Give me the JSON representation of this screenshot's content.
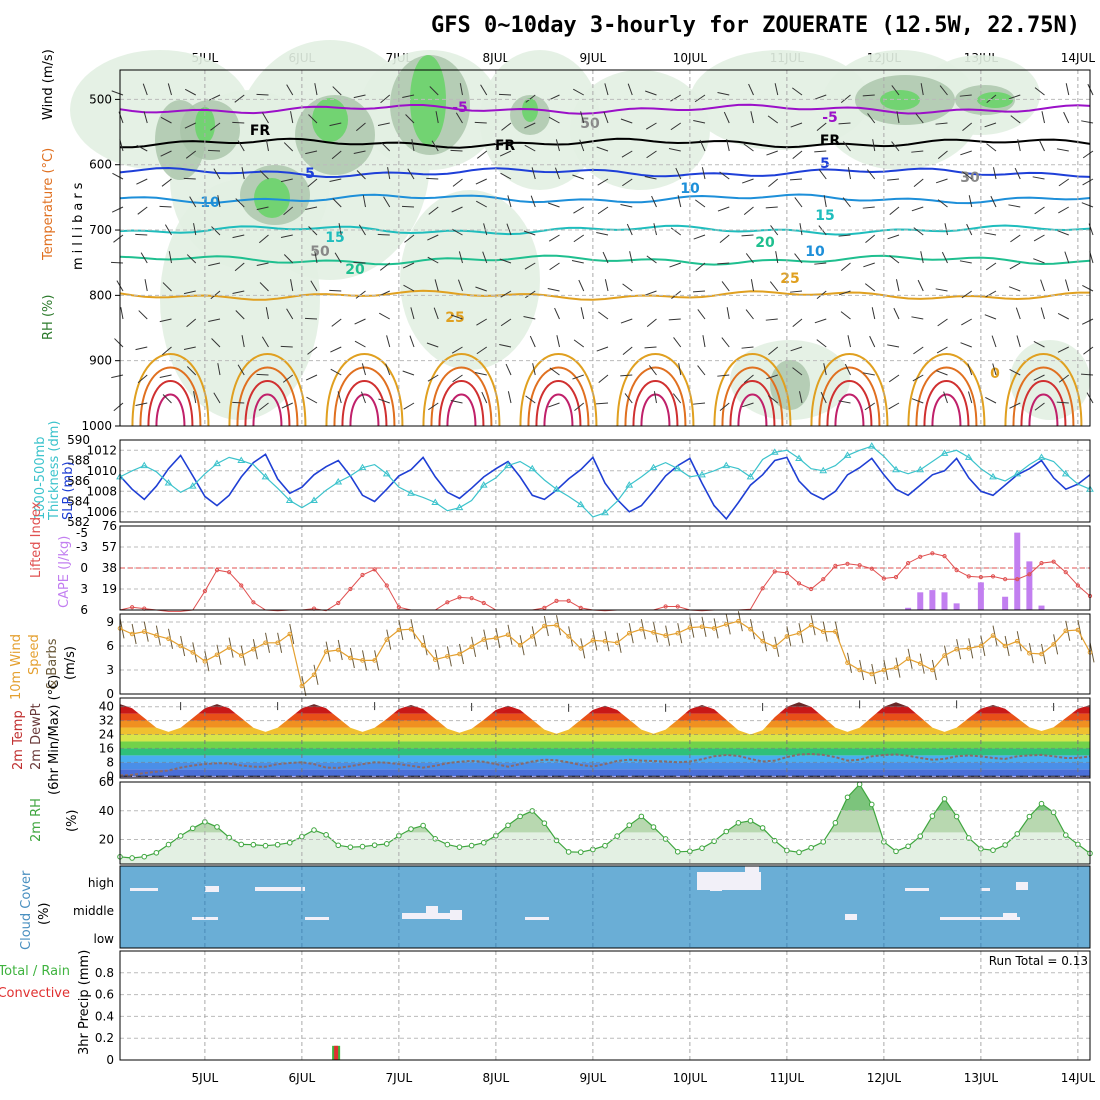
{
  "title": "GFS 0~10day 3-hourly for ZOUERATE (12.5W, 22.75N)",
  "dates": [
    "5JUL",
    "6JUL",
    "7JUL",
    "8JUL",
    "9JUL",
    "10JUL",
    "11JUL",
    "12JUL",
    "13JUL",
    "14JUL"
  ],
  "run_total": "Run Total = 0.13",
  "colors": {
    "rh_dark": "#6fd36f",
    "rh_mid": "#a9c4a9",
    "rh_light": "#e2efe2",
    "slp": "#1f3fd4",
    "thickness": "#3cc3cc",
    "lifted": "#e05050",
    "cape": "#c27ff0",
    "wind": "#e4a030",
    "rh2m": "#3fa63f",
    "cloud_bg": "#6aaed6",
    "cloud_fill": "#f2f0f8",
    "precip_total": "#3fb33f",
    "precip_conv": "#e03030"
  },
  "chart_data": [
    {
      "id": "upper",
      "type": "contour",
      "ylabel_parts": [
        "RH (%)",
        "Temperature (°C)",
        "Wind (m/s)"
      ],
      "yunit": "millibars",
      "yticks": [
        500,
        600,
        700,
        800,
        900,
        1000
      ],
      "ylim": [
        1000,
        455
      ],
      "contour_labels": [
        "-5",
        "-5",
        "FR",
        "FR",
        "FR",
        "5",
        "5",
        "10",
        "10",
        "15",
        "15",
        "20",
        "20",
        "25",
        "25",
        "50",
        "50",
        "30",
        "10",
        "0"
      ],
      "isotherms": [
        {
          "label": "-5",
          "level": 515,
          "color": "#9b10c8"
        },
        {
          "label": "FR",
          "level": 567,
          "color": "#000000"
        },
        {
          "label": "5",
          "level": 612,
          "color": "#1e3fd8"
        },
        {
          "label": "10",
          "level": 652,
          "color": "#1d8fd9"
        },
        {
          "label": "15",
          "level": 700,
          "color": "#1fbdbd"
        },
        {
          "label": "20",
          "level": 746,
          "color": "#1fbf8f"
        },
        {
          "label": "25",
          "level": 800,
          "color": "#e0a020"
        }
      ]
    },
    {
      "id": "thickness-slp",
      "type": "line",
      "ylabel_parts": [
        "1000-500mb",
        "Thickness (dm)",
        "SLP (mb)"
      ],
      "thickness_ticks": [
        582,
        584,
        586,
        588,
        590
      ],
      "slp_ticks": [
        1006,
        1008,
        1010,
        1012
      ],
      "thickness_lim": [
        582,
        590
      ],
      "slp_lim": [
        1005,
        1013
      ],
      "series": [
        {
          "name": "SLP (mb)",
          "axis": "slp",
          "values": [
            1009.5,
            1008.2,
            1007.2,
            1008.5,
            1010.2,
            1011.5,
            1009.5,
            1007.5,
            1006.6,
            1007.6,
            1009.4,
            1010.8,
            1011.6,
            1009.2,
            1007.8,
            1008.4,
            1009.6,
            1010.4,
            1011.0,
            1009.5,
            1007.6,
            1007.0,
            1008.2,
            1009.5,
            1010.1,
            1011.3,
            1009.4,
            1007.9,
            1007.3,
            1008.3,
            1009.4,
            1010.2,
            1010.9,
            1009.4,
            1007.6,
            1007.2,
            1008.1,
            1009.2,
            1010.1,
            1011.3,
            1008.8,
            1007.2,
            1006.0,
            1006.6,
            1008.0,
            1009.5,
            1010.5,
            1011.2,
            1008.8,
            1006.6,
            1005.3,
            1006.9,
            1008.6,
            1009.6,
            1011.0,
            1011.3,
            1009.0,
            1007.8,
            1007.2,
            1008.0,
            1009.6,
            1010.3,
            1011.2,
            1009.6,
            1008.2,
            1007.6,
            1008.6,
            1009.6,
            1010.0,
            1011.2,
            1009.3,
            1008.0,
            1007.6,
            1008.6,
            1009.6,
            1010.2,
            1011.0,
            1009.3,
            1008.2,
            1008.7,
            1009.6
          ]
        },
        {
          "name": "1000-500mb Thickness (dm)",
          "axis": "thickness",
          "values": [
            586.4,
            587.0,
            587.5,
            586.9,
            585.8,
            584.9,
            585.5,
            586.7,
            587.7,
            588.3,
            588.0,
            587.6,
            586.4,
            585.3,
            584.1,
            583.4,
            584.1,
            585.1,
            585.9,
            586.5,
            587.3,
            587.6,
            586.7,
            585.4,
            584.8,
            584.4,
            583.9,
            583.1,
            583.4,
            584.1,
            585.6,
            586.3,
            587.5,
            587.9,
            587.2,
            586.1,
            585.2,
            584.5,
            583.7,
            582.5,
            582.9,
            584.0,
            585.6,
            586.4,
            587.3,
            587.8,
            587.2,
            586.4,
            586.6,
            587.0,
            587.5,
            587.2,
            586.4,
            588.1,
            588.8,
            589.0,
            588.2,
            587.2,
            587.0,
            587.5,
            588.5,
            589.0,
            589.4,
            588.4,
            587.1,
            586.7,
            587.1,
            587.9,
            588.7,
            589.0,
            588.3,
            587.2,
            586.4,
            586.0,
            586.7,
            587.6,
            588.3,
            587.9,
            586.7,
            585.7,
            585.2
          ]
        }
      ]
    },
    {
      "id": "instability",
      "type": "line+bar",
      "ylabel_parts": [
        "Lifted Index",
        "CAPE (J/kg)"
      ],
      "li_ticks": [
        -5,
        -3,
        0,
        3,
        6
      ],
      "cape_ticks": [
        19,
        38,
        57,
        76
      ],
      "li_lim": [
        6,
        -6
      ],
      "cape_lim": [
        0,
        76
      ],
      "series": [
        {
          "name": "Lifted Index",
          "values": [
            6.0,
            5.6,
            5.8,
            6.0,
            6.2,
            6.2,
            6.0,
            3.3,
            0.3,
            0.6,
            2.5,
            4.9,
            6.0,
            6.1,
            6.0,
            6.0,
            5.8,
            6.1,
            5.0,
            3.0,
            1.0,
            0.2,
            2.5,
            5.6,
            6.0,
            6.0,
            6.0,
            4.9,
            4.2,
            4.3,
            5.0,
            6.0,
            6.0,
            6.0,
            6.0,
            5.7,
            4.7,
            4.7,
            5.7,
            6.0,
            6.1,
            6.0,
            6.0,
            6.0,
            6.0,
            5.5,
            5.5,
            6.0,
            6.1,
            6.0,
            6.0,
            6.0,
            5.9,
            2.9,
            0.5,
            0.7,
            2.2,
            3.0,
            1.6,
            -0.3,
            -0.6,
            -0.4,
            0.1,
            1.5,
            1.3,
            -0.7,
            -1.6,
            -2.1,
            -1.7,
            0.3,
            1.2,
            1.3,
            1.2,
            1.6,
            1.6,
            0.9,
            -0.7,
            -0.9,
            0.6,
            2.5,
            4.0
          ]
        },
        {
          "name": "CAPE (J/kg)",
          "type": "bar",
          "values": [
            0,
            0,
            0,
            0,
            0,
            0,
            0,
            0,
            0,
            0,
            0,
            0,
            0,
            0,
            0,
            0,
            0,
            0,
            0,
            0,
            0,
            0,
            0,
            0,
            0,
            0,
            0,
            0,
            0,
            0,
            0,
            0,
            0,
            0,
            0,
            0,
            0,
            0,
            0,
            0,
            0,
            0,
            0,
            0,
            0,
            0,
            0,
            0,
            0,
            0,
            0,
            0,
            0,
            0,
            0,
            0,
            0,
            0,
            0,
            0,
            0,
            0,
            0,
            0,
            0,
            2,
            16,
            18,
            16,
            6,
            0,
            25,
            0,
            12,
            70,
            44,
            4,
            0,
            0,
            0,
            0
          ]
        }
      ]
    },
    {
      "id": "wind",
      "type": "line",
      "ylabel_parts": [
        "10m Wind",
        "Speed",
        "& Barbs",
        "(m/s)"
      ],
      "yticks": [
        0,
        3,
        6,
        9
      ],
      "ylim": [
        0,
        10
      ],
      "series": [
        {
          "name": "10m Wind Speed",
          "values": [
            8.2,
            7.5,
            7.8,
            7.3,
            6.9,
            6.0,
            5.2,
            4.1,
            4.9,
            5.8,
            4.8,
            5.6,
            6.4,
            6.4,
            7.5,
            1.0,
            2.4,
            5.3,
            5.5,
            4.5,
            4.2,
            4.2,
            6.8,
            8.0,
            8.1,
            6.1,
            4.3,
            4.7,
            5.0,
            5.9,
            6.8,
            7.0,
            7.4,
            6.1,
            7.2,
            8.5,
            8.6,
            7.2,
            5.7,
            6.7,
            6.6,
            6.4,
            7.6,
            8.1,
            7.7,
            7.3,
            7.6,
            8.3,
            8.4,
            8.2,
            8.7,
            9.1,
            8.1,
            6.6,
            5.9,
            7.2,
            7.6,
            8.6,
            7.8,
            7.8,
            3.9,
            3.0,
            2.5,
            3.0,
            3.3,
            4.4,
            3.8,
            3.0,
            4.8,
            5.6,
            5.7,
            6.0,
            7.3,
            6.0,
            6.6,
            5.1,
            5.0,
            6.2,
            7.9,
            8.0,
            5.2
          ]
        }
      ]
    },
    {
      "id": "temperature",
      "type": "area",
      "ylabel_parts": [
        "2m Temp",
        "2m DewPt",
        "(6hr Min/Max) (°C)"
      ],
      "yticks": [
        0,
        8,
        16,
        24,
        32,
        40
      ],
      "ylim": [
        -1,
        45
      ],
      "series": [
        {
          "name": "2m Temp",
          "period_days": 1,
          "minmax_by_day": [
            [
              25.5,
              41.5
            ],
            [
              25.5,
              41.5
            ],
            [
              25.5,
              41.5
            ],
            [
              25.0,
              41.0
            ],
            [
              24.5,
              40.5
            ],
            [
              24.5,
              40.5
            ],
            [
              24.0,
              41.0
            ],
            [
              25.5,
              42.5
            ],
            [
              25.5,
              42.5
            ],
            [
              26.0,
              41.0
            ]
          ]
        },
        {
          "name": "2m DewPt",
          "values": [
            0.5,
            0.8,
            1.8,
            2.6,
            3.3,
            5.0,
            6.2,
            7.0,
            7.5,
            7.4,
            6.2,
            5.5,
            5.5,
            7.0,
            7.6,
            8.0,
            7.0,
            5.0,
            4.8,
            5.8,
            7.0,
            8.0,
            7.8,
            7.0,
            6.0,
            5.0,
            6.0,
            7.5,
            8.4,
            8.8,
            8.4,
            7.0,
            5.5,
            7.0,
            8.5,
            9.5,
            9.2,
            8.0,
            6.5,
            5.6,
            7.0,
            8.8,
            9.5,
            9.0,
            8.8,
            8.5,
            8.0,
            8.5,
            9.8,
            11.5,
            12.2,
            11.7,
            10.0,
            8.5,
            9.0,
            11.0,
            12.5,
            12.8,
            12.3,
            11.0,
            9.0,
            9.5,
            11.5,
            12.2,
            12.5,
            11.8,
            10.5,
            9.5,
            10.0,
            11.5,
            12.0,
            11.5,
            10.5,
            10.0,
            11.5,
            12.0,
            12.3,
            11.5,
            10.5,
            10.5,
            11.5
          ]
        }
      ]
    },
    {
      "id": "rh2m",
      "type": "area",
      "ylabel_parts": [
        "2m RH",
        "(%)"
      ],
      "yticks": [
        20,
        40,
        60
      ],
      "ylim": [
        3,
        60
      ],
      "series": [
        {
          "name": "2m RH",
          "values": [
            8.0,
            7.2,
            8.1,
            10.8,
            16.5,
            22.5,
            27.8,
            32.3,
            28.8,
            21.4,
            16.6,
            16.4,
            15.7,
            16.4,
            17.8,
            22.0,
            26.6,
            23.3,
            16.0,
            14.7,
            15.1,
            16.1,
            17.0,
            22.7,
            27.3,
            29.7,
            20.5,
            16.5,
            14.7,
            15.8,
            17.8,
            22.7,
            29.9,
            36.1,
            39.9,
            31.4,
            19.4,
            11.4,
            11.2,
            13.1,
            15.7,
            22.4,
            30.0,
            36.1,
            28.7,
            20.4,
            11.5,
            11.8,
            14.0,
            18.8,
            25.6,
            31.6,
            33.0,
            28.1,
            19.2,
            12.4,
            11.1,
            14.3,
            18.4,
            31.6,
            49.4,
            58.4,
            44.4,
            18.4,
            11.8,
            15.3,
            22.3,
            36.3,
            48.3,
            36.0,
            21.1,
            13.6,
            12.6,
            16.2,
            23.9,
            36.0,
            44.9,
            38.9,
            23.1,
            16.6,
            10.4
          ]
        }
      ]
    },
    {
      "id": "cloud",
      "type": "bar",
      "ylabel_parts": [
        "Cloud Cover",
        "(%)"
      ],
      "layers": [
        "high",
        "middle",
        "low"
      ],
      "high": [
        0,
        1,
        0,
        0,
        0,
        0,
        0,
        5,
        0,
        0,
        0,
        0,
        0,
        0,
        1,
        1,
        1,
        1,
        1,
        0,
        0,
        0,
        0,
        0,
        0,
        0,
        0,
        0,
        0,
        0,
        0,
        0,
        0,
        0,
        0,
        0,
        0,
        0,
        0,
        0,
        0,
        0,
        0,
        0,
        0,
        0,
        0,
        0,
        0,
        0,
        0,
        0,
        0,
        0,
        0,
        0,
        0,
        0,
        0,
        0,
        0,
        0,
        0,
        0,
        0,
        0,
        0,
        0,
        0,
        1,
        1,
        1,
        0,
        0,
        0,
        0,
        0,
        0,
        0,
        0,
        0
      ],
      "high_big": [
        0,
        0,
        0,
        0,
        0,
        0,
        0,
        0,
        0,
        0,
        0,
        0,
        0,
        0,
        0,
        0,
        0,
        0,
        0,
        0,
        0,
        0,
        0,
        0,
        0,
        0,
        0,
        0,
        0,
        0,
        0,
        0,
        0,
        0,
        0,
        0,
        0,
        0,
        0,
        0,
        0,
        0,
        0,
        0,
        0,
        0,
        0,
        0,
        0,
        0,
        0,
        0,
        0,
        0,
        0,
        0,
        0,
        0,
        0,
        0,
        0,
        0,
        0,
        0,
        0,
        0,
        0,
        0,
        0,
        0,
        0,
        0,
        0,
        0,
        0,
        0,
        0,
        0,
        0,
        0,
        0
      ],
      "middle": [
        0,
        0,
        0,
        0,
        0,
        0,
        1,
        1,
        1,
        1,
        0,
        0,
        0,
        0,
        0,
        0,
        1,
        1,
        1,
        0,
        0,
        0,
        0,
        0,
        0,
        0,
        0,
        0,
        0,
        0,
        0,
        0,
        0,
        0,
        0,
        0,
        0,
        0,
        0,
        0,
        0,
        0,
        0,
        0,
        0,
        0,
        0,
        0,
        0,
        0,
        0,
        0,
        0,
        0,
        0,
        0,
        0,
        0,
        0,
        0,
        0,
        0,
        0,
        0,
        0,
        0,
        0,
        0,
        0,
        0,
        0,
        0,
        0,
        0,
        0,
        0,
        0,
        0,
        0,
        0,
        0
      ]
    },
    {
      "id": "precip",
      "type": "bar",
      "ylabel_parts": [
        "Total / Rain",
        "Convective",
        "3hr Precip (mm)"
      ],
      "yticks": [
        0,
        0.2,
        0.4,
        0.6,
        0.8
      ],
      "ylim": [
        0,
        1.0
      ],
      "series": [
        {
          "name": "Total / Rain",
          "values": {
            "index": 17,
            "value": 0.13
          }
        },
        {
          "name": "Convective",
          "values": {
            "index": 17,
            "value": 0.13
          }
        }
      ]
    }
  ]
}
